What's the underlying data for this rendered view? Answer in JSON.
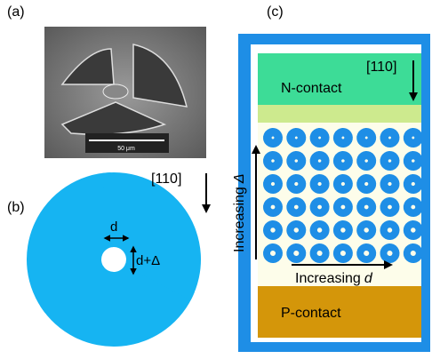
{
  "panel_a": {
    "label": "(a)",
    "scale_bar": "50 μm"
  },
  "panel_b": {
    "label": "(b)",
    "direction": "[110]",
    "gap_label": "d",
    "hole_label": "d+Δ"
  },
  "panel_c": {
    "label": "(c)",
    "direction": "[110]",
    "top_contact": "N-contact",
    "bottom_contact": "P-contact",
    "vertical_axis": {
      "text": "Increasing",
      "symbol": "Δ"
    },
    "horizontal_axis": {
      "text": "Increasing",
      "symbol": "d"
    }
  }
}
